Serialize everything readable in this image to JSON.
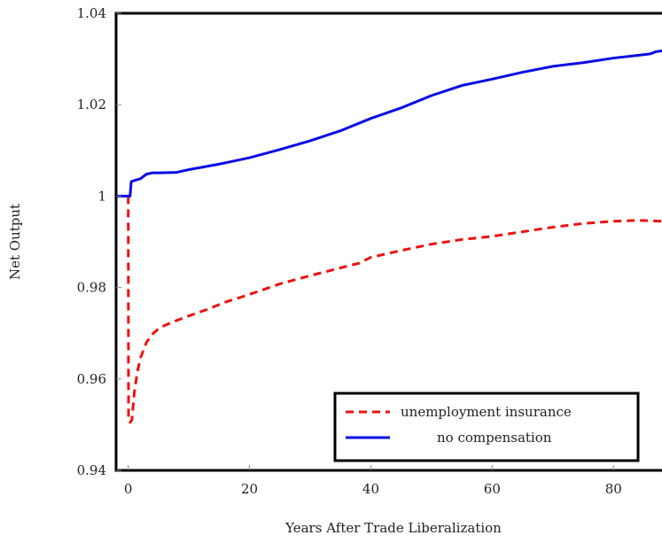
{
  "chart_data": {
    "type": "line",
    "xlabel": "Years After Trade Liberalization",
    "ylabel": "Net Output",
    "xlim": [
      -2,
      88
    ],
    "ylim": [
      0.94,
      1.04
    ],
    "xticks": [
      "0",
      "20",
      "40",
      "60",
      "80"
    ],
    "xtick_values": [
      0,
      20,
      40,
      60,
      80
    ],
    "yticks": [
      "0.94",
      "0.96",
      "0.98",
      "1",
      "1.02",
      "1.04"
    ],
    "ytick_values": [
      0.94,
      0.96,
      0.98,
      1.0,
      1.02,
      1.04
    ],
    "grid": false,
    "legend_position": "bottom-right",
    "series": [
      {
        "name": "unemployment insurance",
        "color": "#ee1111",
        "dash": "dashed",
        "x": [
          0,
          0.05,
          0.3,
          0.6,
          1,
          1.5,
          2,
          3,
          4,
          5,
          6,
          8,
          10,
          13,
          16,
          20,
          25,
          30,
          35,
          38,
          40,
          45,
          50,
          55,
          60,
          65,
          70,
          75,
          80,
          84,
          88
        ],
        "y": [
          1.0,
          0.951,
          0.9505,
          0.951,
          0.957,
          0.9615,
          0.9645,
          0.968,
          0.9698,
          0.971,
          0.9717,
          0.9728,
          0.9738,
          0.9752,
          0.9768,
          0.9785,
          0.9808,
          0.9826,
          0.9843,
          0.9853,
          0.9866,
          0.9881,
          0.9895,
          0.9905,
          0.9912,
          0.9922,
          0.9932,
          0.994,
          0.9945,
          0.9947,
          0.9945
        ]
      },
      {
        "name": "no compensation",
        "color": "#0a0ae6",
        "dash": "solid",
        "x": [
          -2,
          0,
          0.3,
          0.5,
          1,
          2,
          3,
          4,
          5,
          8,
          10,
          15,
          20,
          25,
          30,
          35,
          40,
          45,
          50,
          55,
          60,
          65,
          70,
          75,
          80,
          84,
          86,
          87,
          88
        ],
        "y": [
          1.0,
          1.0,
          1.0,
          1.0032,
          1.0034,
          1.0038,
          1.0048,
          1.0051,
          1.0051,
          1.0052,
          1.0058,
          1.007,
          1.0084,
          1.0102,
          1.0121,
          1.0143,
          1.017,
          1.0193,
          1.022,
          1.0242,
          1.0256,
          1.0271,
          1.0284,
          1.0292,
          1.0302,
          1.0308,
          1.0311,
          1.0316,
          1.0318
        ]
      }
    ]
  }
}
